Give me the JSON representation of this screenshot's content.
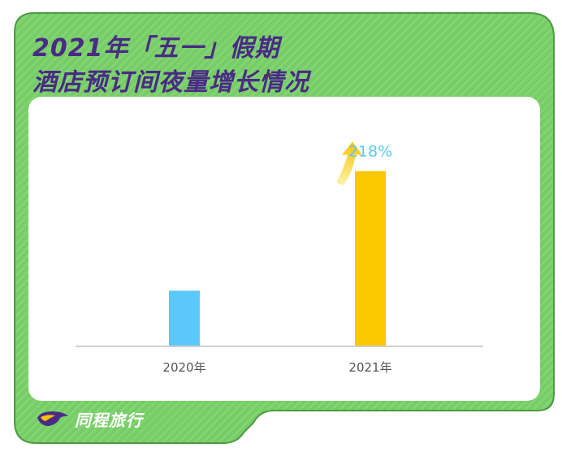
{
  "header": {
    "title_line1": "2021年「五一」假期",
    "title_line2": "酒店预订间夜量增长情况"
  },
  "brand": {
    "name": "同程旅行"
  },
  "colors": {
    "background_green": "#76cc66",
    "title_purple": "#4a2a86",
    "bar_2020": "#5bc8fb",
    "bar_2021": "#fcc800",
    "growth_label": "#5bc8f5"
  },
  "chart_data": {
    "type": "bar",
    "categories": [
      "2020年",
      "2021年"
    ],
    "values": [
      100,
      318
    ],
    "annotations": [
      {
        "category": "2021年",
        "text": "218%",
        "icon": "up-arrow-icon"
      }
    ],
    "title": "",
    "xlabel": "",
    "ylabel": "",
    "ylim": [
      0,
      400
    ],
    "grid": false,
    "legend": "none"
  }
}
